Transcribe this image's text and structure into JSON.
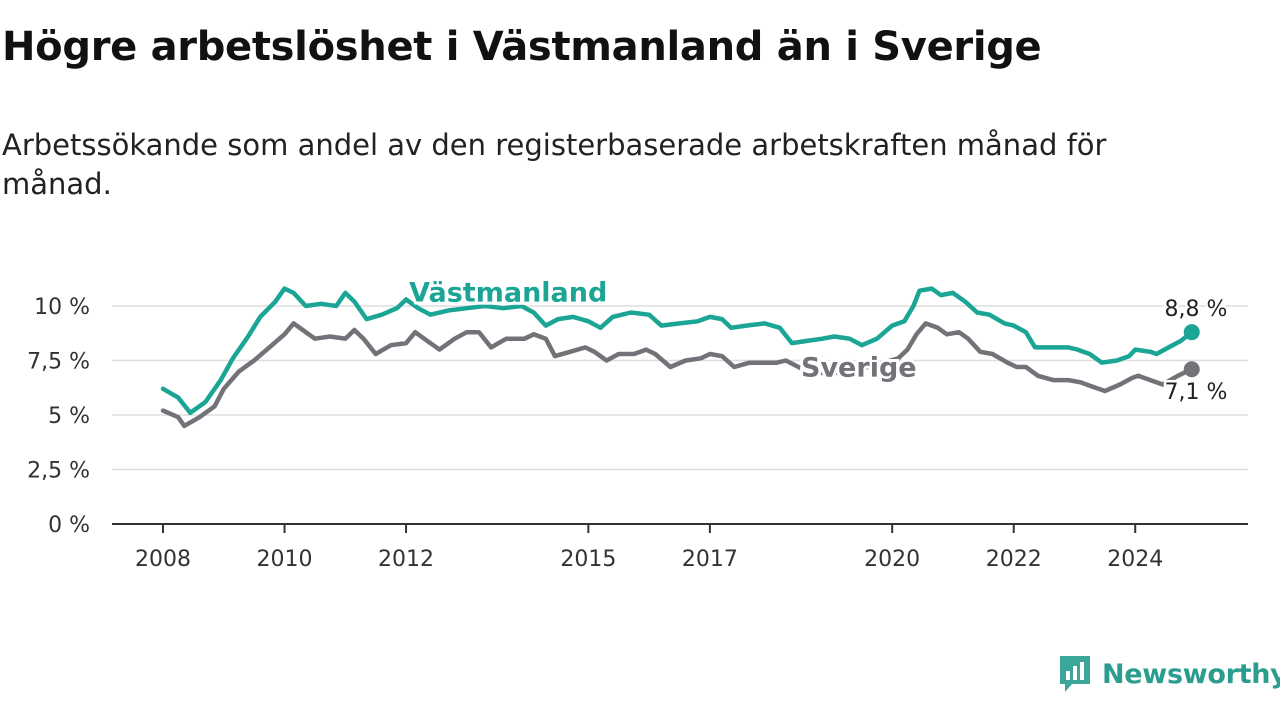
{
  "title": "Högre arbetslöshet i Västmanland än i Sverige",
  "subtitle": "Arbetssökande som andel av den registerbaserade arbetskraften månad för månad.",
  "brand": {
    "name": "Newsworthy",
    "icon": "newsworthy-logo-icon"
  },
  "colors": {
    "vastmanland": "#1aa595",
    "sverige": "#737278",
    "grid": "#dedede",
    "axis": "#333333"
  },
  "chart_data": {
    "type": "line",
    "title": "Högre arbetslöshet i Västmanland än i Sverige",
    "subtitle": "Arbetssökande som andel av den registerbaserade arbetskraften månad för månad.",
    "xlabel": "",
    "ylabel": "",
    "xlim": [
      2008,
      2025
    ],
    "ylim": [
      0,
      10
    ],
    "y_ticks": [
      {
        "value": 0,
        "label": "0 %"
      },
      {
        "value": 2.5,
        "label": "2,5 %"
      },
      {
        "value": 5,
        "label": "5 %"
      },
      {
        "value": 7.5,
        "label": "7,5 %"
      },
      {
        "value": 10,
        "label": "10 %"
      }
    ],
    "x_ticks": [
      {
        "value": 2008,
        "label": "2008"
      },
      {
        "value": 2010,
        "label": "2010"
      },
      {
        "value": 2012,
        "label": "2012"
      },
      {
        "value": 2015,
        "label": "2015"
      },
      {
        "value": 2017,
        "label": "2017"
      },
      {
        "value": 2020,
        "label": "2020"
      },
      {
        "value": 2022,
        "label": "2022"
      },
      {
        "value": 2024,
        "label": "2024"
      }
    ],
    "grid": true,
    "legend": "inline labels",
    "series": [
      {
        "name": "Västmanland",
        "color": "#1aa595",
        "end_label": "8,8 %",
        "points": [
          [
            2008,
            6.2
          ],
          [
            2008.25,
            5.8
          ],
          [
            2008.45,
            5.1
          ],
          [
            2008.7,
            5.6
          ],
          [
            2008.95,
            6.6
          ],
          [
            2009.15,
            7.6
          ],
          [
            2009.4,
            8.6
          ],
          [
            2009.6,
            9.5
          ],
          [
            2009.85,
            10.2
          ],
          [
            2010.0,
            10.8
          ],
          [
            2010.15,
            10.6
          ],
          [
            2010.35,
            10.0
          ],
          [
            2010.6,
            10.1
          ],
          [
            2010.85,
            10.0
          ],
          [
            2011.0,
            10.6
          ],
          [
            2011.15,
            10.2
          ],
          [
            2011.35,
            9.4
          ],
          [
            2011.6,
            9.6
          ],
          [
            2011.85,
            9.9
          ],
          [
            2012.0,
            10.3
          ],
          [
            2012.2,
            9.9
          ],
          [
            2012.4,
            9.6
          ],
          [
            2012.7,
            9.8
          ],
          [
            2013.0,
            9.9
          ],
          [
            2013.3,
            10.0
          ],
          [
            2013.6,
            9.9
          ],
          [
            2013.9,
            10.0
          ],
          [
            2014.1,
            9.7
          ],
          [
            2014.3,
            9.1
          ],
          [
            2014.5,
            9.4
          ],
          [
            2014.75,
            9.5
          ],
          [
            2015.0,
            9.3
          ],
          [
            2015.2,
            9.0
          ],
          [
            2015.4,
            9.5
          ],
          [
            2015.7,
            9.7
          ],
          [
            2016.0,
            9.6
          ],
          [
            2016.2,
            9.1
          ],
          [
            2016.5,
            9.2
          ],
          [
            2016.8,
            9.3
          ],
          [
            2017.0,
            9.5
          ],
          [
            2017.2,
            9.4
          ],
          [
            2017.35,
            9.0
          ],
          [
            2017.6,
            9.1
          ],
          [
            2017.9,
            9.2
          ],
          [
            2018.15,
            9.0
          ],
          [
            2018.35,
            8.3
          ],
          [
            2018.6,
            8.4
          ],
          [
            2018.85,
            8.5
          ],
          [
            2019.05,
            8.6
          ],
          [
            2019.3,
            8.5
          ],
          [
            2019.5,
            8.2
          ],
          [
            2019.75,
            8.5
          ],
          [
            2020.0,
            9.1
          ],
          [
            2020.2,
            9.3
          ],
          [
            2020.35,
            10.0
          ],
          [
            2020.45,
            10.7
          ],
          [
            2020.65,
            10.8
          ],
          [
            2020.8,
            10.5
          ],
          [
            2021.0,
            10.6
          ],
          [
            2021.2,
            10.2
          ],
          [
            2021.4,
            9.7
          ],
          [
            2021.6,
            9.6
          ],
          [
            2021.85,
            9.2
          ],
          [
            2022.0,
            9.1
          ],
          [
            2022.2,
            8.8
          ],
          [
            2022.35,
            8.1
          ],
          [
            2022.6,
            8.1
          ],
          [
            2022.9,
            8.1
          ],
          [
            2023.05,
            8.0
          ],
          [
            2023.25,
            7.8
          ],
          [
            2023.45,
            7.4
          ],
          [
            2023.7,
            7.5
          ],
          [
            2023.9,
            7.7
          ],
          [
            2024.0,
            8.0
          ],
          [
            2024.25,
            7.9
          ],
          [
            2024.35,
            7.8
          ],
          [
            2024.55,
            8.1
          ],
          [
            2024.75,
            8.4
          ],
          [
            2024.93,
            8.8
          ]
        ]
      },
      {
        "name": "Sverige",
        "color": "#737278",
        "end_label": "7,1 %",
        "points": [
          [
            2008,
            5.2
          ],
          [
            2008.25,
            4.9
          ],
          [
            2008.35,
            4.5
          ],
          [
            2008.6,
            4.9
          ],
          [
            2008.85,
            5.4
          ],
          [
            2009.0,
            6.2
          ],
          [
            2009.25,
            7.0
          ],
          [
            2009.5,
            7.5
          ],
          [
            2009.75,
            8.1
          ],
          [
            2010.0,
            8.7
          ],
          [
            2010.15,
            9.2
          ],
          [
            2010.3,
            8.9
          ],
          [
            2010.5,
            8.5
          ],
          [
            2010.75,
            8.6
          ],
          [
            2011.0,
            8.5
          ],
          [
            2011.15,
            8.9
          ],
          [
            2011.3,
            8.5
          ],
          [
            2011.5,
            7.8
          ],
          [
            2011.75,
            8.2
          ],
          [
            2012.0,
            8.3
          ],
          [
            2012.15,
            8.8
          ],
          [
            2012.35,
            8.4
          ],
          [
            2012.55,
            8.0
          ],
          [
            2012.8,
            8.5
          ],
          [
            2013.0,
            8.8
          ],
          [
            2013.2,
            8.8
          ],
          [
            2013.4,
            8.1
          ],
          [
            2013.65,
            8.5
          ],
          [
            2013.95,
            8.5
          ],
          [
            2014.1,
            8.7
          ],
          [
            2014.3,
            8.5
          ],
          [
            2014.45,
            7.7
          ],
          [
            2014.7,
            7.9
          ],
          [
            2014.95,
            8.1
          ],
          [
            2015.1,
            7.9
          ],
          [
            2015.3,
            7.5
          ],
          [
            2015.5,
            7.8
          ],
          [
            2015.75,
            7.8
          ],
          [
            2015.95,
            8.0
          ],
          [
            2016.1,
            7.8
          ],
          [
            2016.35,
            7.2
          ],
          [
            2016.6,
            7.5
          ],
          [
            2016.85,
            7.6
          ],
          [
            2017.0,
            7.8
          ],
          [
            2017.2,
            7.7
          ],
          [
            2017.4,
            7.2
          ],
          [
            2017.65,
            7.4
          ],
          [
            2017.9,
            7.4
          ],
          [
            2018.1,
            7.4
          ],
          [
            2018.25,
            7.5
          ],
          [
            2018.6,
            7.0
          ],
          [
            2018.95,
            6.9
          ],
          [
            2019.3,
            7.0
          ],
          [
            2019.6,
            7.2
          ],
          [
            2019.85,
            7.4
          ],
          [
            2020.1,
            7.6
          ],
          [
            2020.25,
            8.0
          ],
          [
            2020.4,
            8.7
          ],
          [
            2020.55,
            9.2
          ],
          [
            2020.75,
            9.0
          ],
          [
            2020.9,
            8.7
          ],
          [
            2021.1,
            8.8
          ],
          [
            2021.25,
            8.5
          ],
          [
            2021.45,
            7.9
          ],
          [
            2021.65,
            7.8
          ],
          [
            2021.9,
            7.4
          ],
          [
            2022.05,
            7.2
          ],
          [
            2022.2,
            7.2
          ],
          [
            2022.4,
            6.8
          ],
          [
            2022.65,
            6.6
          ],
          [
            2022.9,
            6.6
          ],
          [
            2023.1,
            6.5
          ],
          [
            2023.3,
            6.3
          ],
          [
            2023.5,
            6.1
          ],
          [
            2023.75,
            6.4
          ],
          [
            2023.95,
            6.7
          ],
          [
            2024.05,
            6.8
          ],
          [
            2024.25,
            6.6
          ],
          [
            2024.45,
            6.4
          ],
          [
            2024.7,
            6.8
          ],
          [
            2024.93,
            7.1
          ]
        ]
      }
    ]
  }
}
